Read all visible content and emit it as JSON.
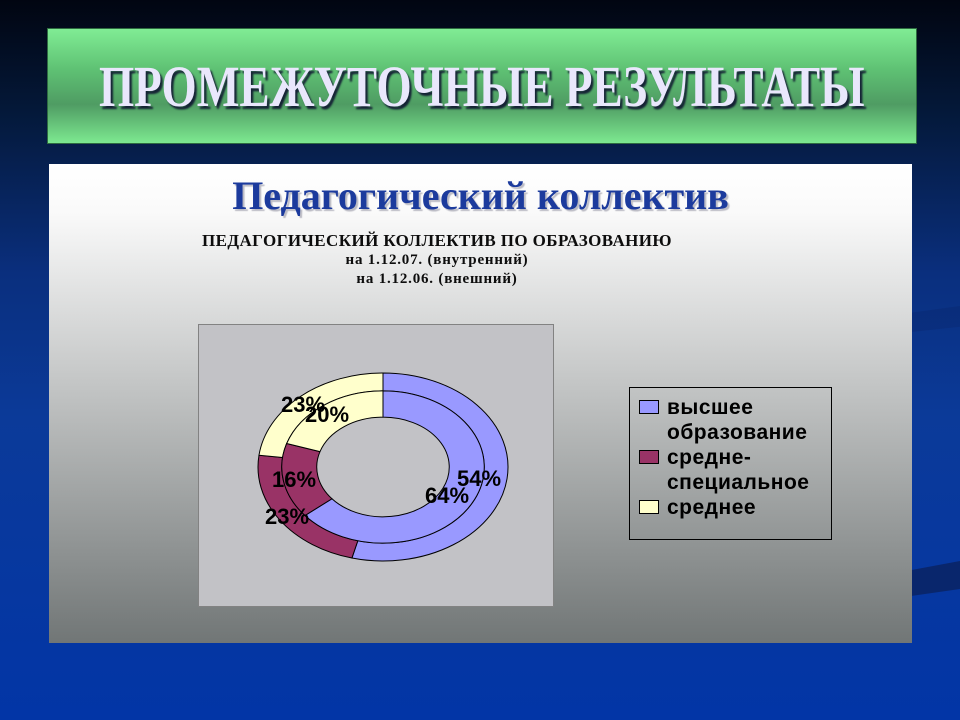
{
  "banner": {
    "title": "ПРОМЕЖУТОЧНЫЕ РЕЗУЛЬТАТЫ"
  },
  "content": {
    "heading": "Педагогический коллектив",
    "chart_title": {
      "line1": "ПЕДАГОГИЧЕСКИЙ КОЛЛЕКТИВ ПО ОБРАЗОВАНИЮ",
      "line2": "на 1.12.07. (внутренний)",
      "line3": "на 1.12.06. (внешний)"
    }
  },
  "chart_data": {
    "type": "doughnut",
    "title": "ПЕДАГОГИЧЕСКИЙ КОЛЛЕКТИВ ПО ОБРАЗОВАНИЮ на 1.12.07. (внутренний) на 1.12.06. (внешний)",
    "categories": [
      "высшее образование",
      "средне-специальное",
      "среднее"
    ],
    "colors": [
      "#9999FF",
      "#993366",
      "#FFFFCC"
    ],
    "legend_position": "right",
    "series": [
      {
        "name": "на 1.12.06. (внешний)",
        "ring": "outer",
        "values": [
          54,
          23,
          23
        ],
        "labels": [
          "54%",
          "23%",
          "23%"
        ],
        "label_pos": [
          [
            280,
            153
          ],
          [
            88,
            191
          ],
          [
            104,
            79
          ]
        ]
      },
      {
        "name": "на 1.12.07. (внутренний)",
        "ring": "inner",
        "values": [
          64,
          16,
          20
        ],
        "labels": [
          "64%",
          "16%",
          "20%"
        ],
        "label_pos": [
          [
            248,
            170
          ],
          [
            95,
            154
          ],
          [
            128,
            89
          ]
        ]
      }
    ]
  },
  "legend": {
    "items": [
      {
        "label": "высшее образование",
        "color": "#9999FF"
      },
      {
        "label": "средне-специальное",
        "color": "#993366"
      },
      {
        "label": "среднее",
        "color": "#FFFFCC"
      }
    ]
  }
}
